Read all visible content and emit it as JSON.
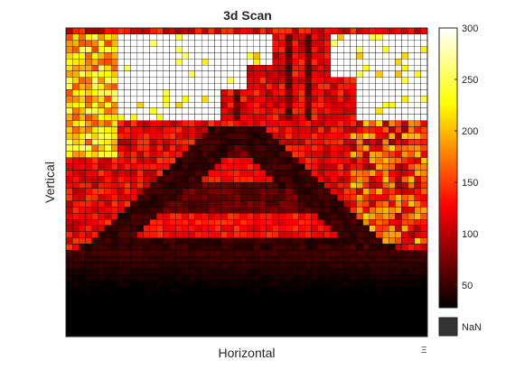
{
  "chart_data": {
    "type": "heatmap",
    "title": "3d Scan",
    "xlabel": "Horizontal",
    "ylabel": "Vertical",
    "grid": {
      "rows": 50,
      "cols": 56,
      "cell_lines": true
    },
    "colormap": "hot",
    "clim": [
      28,
      300
    ],
    "colorbar": {
      "ticks": [
        50,
        100,
        150,
        200,
        250,
        300
      ],
      "tick_labels": [
        "50",
        "100",
        "150",
        "200",
        "250",
        "300"
      ],
      "nan_label": "NaN",
      "nan_color": "#333333",
      "placement": "right"
    },
    "corner_glyph": "Ξ",
    "scene": {
      "description_free_regions": [
        {
          "name": "top-band",
          "rows": [
            0,
            0
          ],
          "value": 90
        },
        {
          "name": "saturated-upper-left",
          "rows": [
            1,
            14
          ],
          "cols": [
            7,
            32
          ],
          "value": 300
        },
        {
          "name": "saturated-upper-right",
          "rows": [
            1,
            14
          ],
          "cols": [
            38,
            56
          ],
          "value": 300
        },
        {
          "name": "letter-A-body",
          "value": 45
        },
        {
          "name": "letter-A-hole",
          "value": 120
        },
        {
          "name": "background-mid",
          "value": 110
        },
        {
          "name": "bottom-fade",
          "rows": [
            36,
            49
          ],
          "value_from": 45,
          "value_to": 0
        }
      ]
    }
  }
}
